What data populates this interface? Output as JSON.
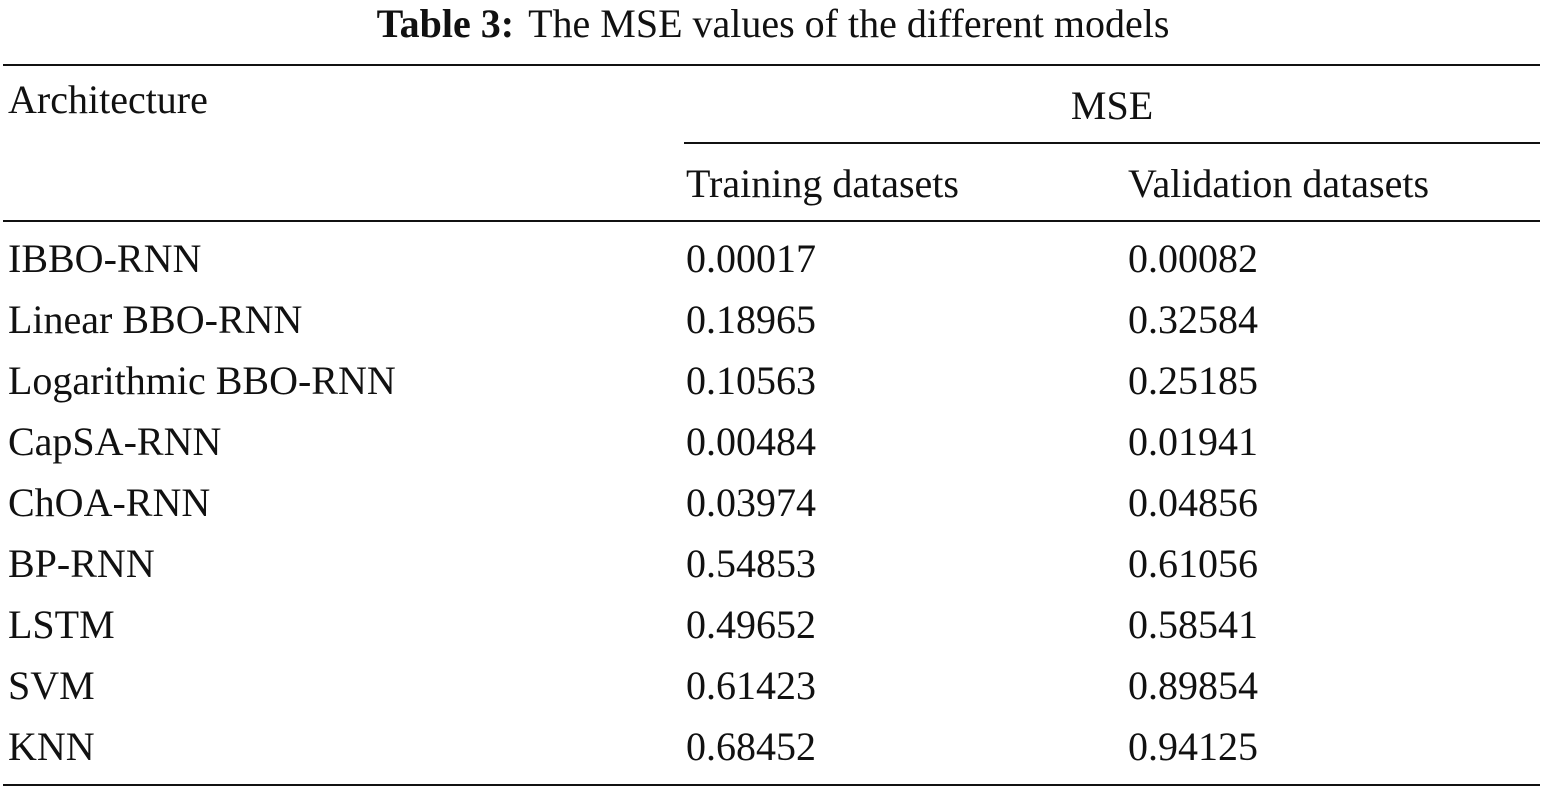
{
  "caption": {
    "label": "Table 3:",
    "text": "The MSE values of the different models"
  },
  "header": {
    "architecture": "Architecture",
    "group": "MSE",
    "training": "Training datasets",
    "validation": "Validation datasets"
  },
  "rows": [
    {
      "architecture": "IBBO-RNN",
      "training": "0.00017",
      "validation": "0.00082"
    },
    {
      "architecture": "Linear BBO-RNN",
      "training": "0.18965",
      "validation": "0.32584"
    },
    {
      "architecture": "Logarithmic BBO-RNN",
      "training": "0.10563",
      "validation": "0.25185"
    },
    {
      "architecture": "CapSA-RNN",
      "training": "0.00484",
      "validation": "0.01941"
    },
    {
      "architecture": "ChOA-RNN",
      "training": "0.03974",
      "validation": "0.04856"
    },
    {
      "architecture": "BP-RNN",
      "training": "0.54853",
      "validation": "0.61056"
    },
    {
      "architecture": "LSTM",
      "training": "0.49652",
      "validation": "0.58541"
    },
    {
      "architecture": "SVM",
      "training": "0.61423",
      "validation": "0.89854"
    },
    {
      "architecture": "KNN",
      "training": "0.68452",
      "validation": "0.94125"
    }
  ]
}
